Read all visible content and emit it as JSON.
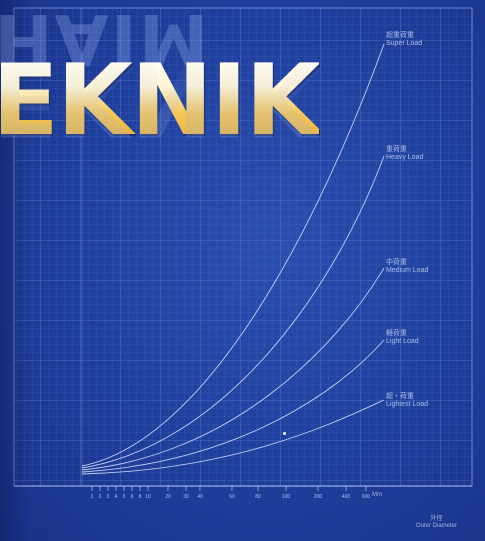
{
  "colors": {
    "background": "#1f3f9c",
    "grid_line": "#7f9be0",
    "curve": "#dfe8ff",
    "logo_gold": "#f2c04a"
  },
  "logo": {
    "main_text": "EKNIK",
    "mirrored_text": "MIAH"
  },
  "curves": [
    {
      "name_cn": "超重荷重",
      "name_en": "Super Load"
    },
    {
      "name_cn": "重荷重",
      "name_en": "Heavy Load"
    },
    {
      "name_cn": "中荷重",
      "name_en": "Medium Load"
    },
    {
      "name_cn": "軽荷重",
      "name_en": "Light Load"
    },
    {
      "name_cn": "超・荷重",
      "name_en": "Lightest Load"
    }
  ],
  "x_axis": {
    "ticks": [
      "1",
      "2",
      "3",
      "4",
      "5",
      "6",
      "8",
      "10",
      "20",
      "30",
      "40",
      "60",
      "80",
      "100",
      "200",
      "400",
      "600"
    ],
    "end_label": "Mm",
    "caption_cn": "外徑",
    "caption_en": "Outer Diameter"
  }
}
